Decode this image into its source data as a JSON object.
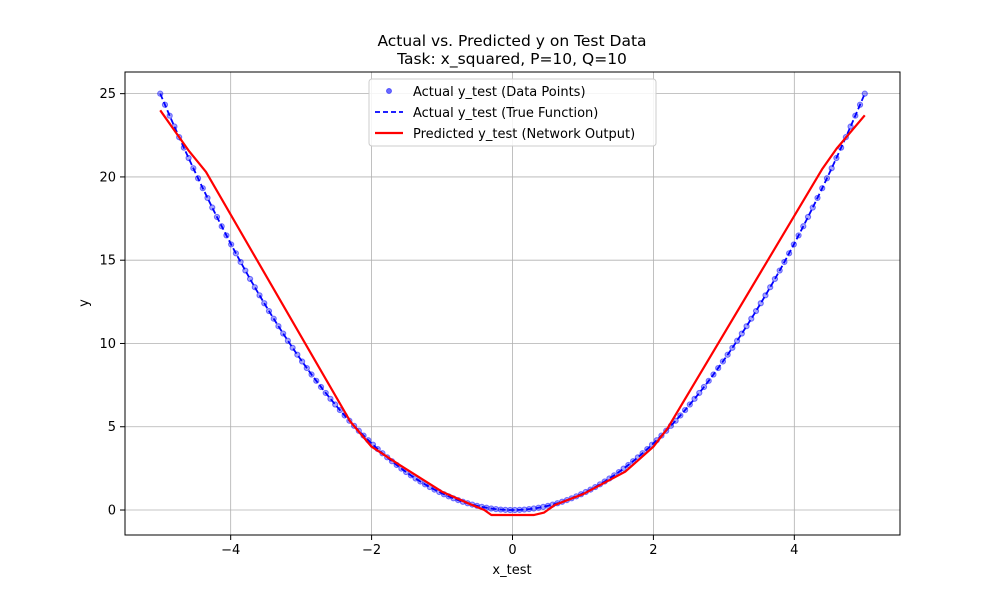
{
  "chart_data": {
    "type": "line",
    "title": "Actual vs. Predicted y on Test Data",
    "subtitle": "Task: x_squared, P=10, Q=10",
    "xlabel": "x_test",
    "ylabel": "y",
    "xlim": [
      -5.5,
      5.5
    ],
    "ylim": [
      -1.5,
      26.3
    ],
    "xticks": [
      -4,
      -2,
      0,
      2,
      4
    ],
    "xtick_labels": [
      "−4",
      "−2",
      "0",
      "2",
      "4"
    ],
    "yticks": [
      0,
      5,
      10,
      15,
      20,
      25
    ],
    "ytick_labels": [
      "0",
      "5",
      "10",
      "15",
      "20",
      "25"
    ],
    "grid": true,
    "legend_position": "top-center",
    "series": [
      {
        "name": "Actual y_test (Data Points)",
        "kind": "scatter",
        "color": "#0000ff",
        "function": "x^2",
        "x_range": [
          -5,
          5
        ],
        "count": 150
      },
      {
        "name": "Actual y_test (True Function)",
        "kind": "line-dashed",
        "color": "#0000ff",
        "function": "x^2",
        "x_range": [
          -5,
          5
        ]
      },
      {
        "name": "Predicted y_test (Network Output)",
        "kind": "line",
        "color": "#ff0000",
        "x": [
          -5.0,
          -4.6,
          -4.35,
          -2.3,
          -2.0,
          -1.6,
          -1.0,
          -0.6,
          -0.4,
          -0.3,
          0.0,
          0.3,
          0.45,
          0.6,
          1.0,
          1.6,
          2.0,
          2.2,
          4.4,
          4.6,
          5.0
        ],
        "y": [
          24.0,
          21.6,
          20.3,
          5.3,
          3.8,
          2.7,
          1.1,
          0.35,
          0.0,
          -0.3,
          -0.3,
          -0.3,
          -0.15,
          0.3,
          0.95,
          2.3,
          3.8,
          4.9,
          20.5,
          21.7,
          23.7
        ]
      }
    ]
  }
}
